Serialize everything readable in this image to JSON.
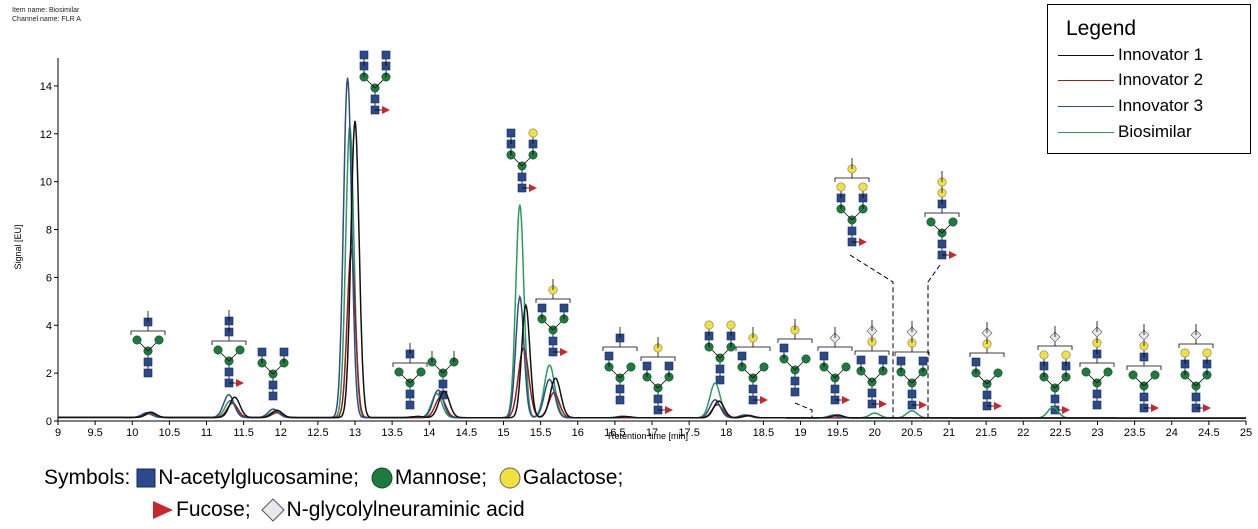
{
  "meta": {
    "item_name": "Item name: Biosimilar",
    "channel_name": "Channel name: FLR A"
  },
  "legend": {
    "title": "Legend",
    "entries": [
      {
        "label": "Innovator 1",
        "color": "#111111"
      },
      {
        "label": "Innovator 2",
        "color": "#9a1c1c"
      },
      {
        "label": "Innovator 3",
        "color": "#2d4f86"
      },
      {
        "label": "Biosimilar",
        "color": "#2e9a5c"
      }
    ]
  },
  "symbols": {
    "prefix": "Symbols:",
    "items": [
      {
        "shape": "square",
        "color": "#2b4a8c",
        "label": "N-acetylglucosamine;"
      },
      {
        "shape": "circle",
        "color": "#1e7a3e",
        "label": "Mannose;"
      },
      {
        "shape": "circle",
        "color": "#f2e13c",
        "label": "Galactose;"
      },
      {
        "shape": "triangle",
        "color": "#c8282d",
        "label": "Fucose;"
      },
      {
        "shape": "diamond",
        "color": "#e8e8ee",
        "label": "N-glycolylneuraminic acid"
      }
    ]
  },
  "chart_data": {
    "type": "line",
    "xlabel": "Retention time [min]",
    "ylabel": "Signal [EU]",
    "xlim": [
      9,
      25
    ],
    "ylim": [
      0,
      15
    ],
    "x_ticks": [
      9,
      9.5,
      10,
      10.5,
      11,
      11.5,
      12,
      12.5,
      13,
      13.5,
      14,
      14.5,
      15,
      15.5,
      16,
      16.5,
      17,
      17.5,
      18,
      18.5,
      19,
      19.5,
      20,
      20.5,
      21,
      21.5,
      22,
      22.5,
      23,
      23.5,
      24,
      24.5,
      25
    ],
    "x_tick_labels": [
      "9",
      "9.5",
      "10",
      "10.5",
      "11",
      "11.5",
      "12",
      "12.5",
      "13",
      "13.5",
      "14",
      "14.5",
      "15",
      "15.5",
      "16",
      "16.5",
      "17",
      "17.5",
      "18",
      "18.5",
      "19",
      "19.5",
      "20",
      "20.5",
      "21",
      "21.5",
      "22",
      "22.5",
      "23",
      "23.5",
      "24",
      "24.5",
      "25"
    ],
    "y_ticks": [
      0,
      2,
      4,
      6,
      8,
      10,
      12,
      14
    ],
    "y_tick_labels": [
      "0",
      "2",
      "4",
      "6",
      "8",
      "10",
      "12",
      "14"
    ],
    "baseline": 0.15,
    "series": [
      {
        "name": "Innovator 1",
        "color": "#111111",
        "peaks": [
          [
            10.25,
            0.22
          ],
          [
            11.38,
            0.85
          ],
          [
            11.95,
            0.3
          ],
          [
            13.0,
            12.4
          ],
          [
            13.85,
            0.05
          ],
          [
            14.2,
            1.1
          ],
          [
            15.3,
            4.7
          ],
          [
            15.7,
            1.65
          ],
          [
            16.65,
            0.05
          ],
          [
            17.9,
            0.7
          ],
          [
            18.3,
            0.1
          ],
          [
            19.5,
            0.12
          ]
        ]
      },
      {
        "name": "Innovator 2",
        "color": "#9a1c1c",
        "peaks": [
          [
            10.25,
            0.18
          ],
          [
            11.35,
            0.6
          ],
          [
            11.95,
            0.2
          ],
          [
            12.95,
            7.0
          ],
          [
            14.15,
            0.85
          ],
          [
            15.27,
            2.9
          ],
          [
            15.68,
            1.05
          ],
          [
            17.88,
            0.55
          ],
          [
            18.3,
            0.08
          ]
        ]
      },
      {
        "name": "Innovator 3",
        "color": "#2d4f86",
        "peaks": [
          [
            10.2,
            0.2
          ],
          [
            11.3,
            0.95
          ],
          [
            11.9,
            0.35
          ],
          [
            12.9,
            14.2
          ],
          [
            13.8,
            0.04
          ],
          [
            14.12,
            1.15
          ],
          [
            15.22,
            5.05
          ],
          [
            15.62,
            1.6
          ],
          [
            16.6,
            0.06
          ],
          [
            17.85,
            0.75
          ],
          [
            18.25,
            0.12
          ],
          [
            19.45,
            0.08
          ]
        ]
      },
      {
        "name": "Biosimilar",
        "color": "#2e9a5c",
        "peaks": [
          [
            10.2,
            0.16
          ],
          [
            11.32,
            0.7
          ],
          [
            11.92,
            0.25
          ],
          [
            12.93,
            12.2
          ],
          [
            14.1,
            1.0
          ],
          [
            15.22,
            8.9
          ],
          [
            15.62,
            2.2
          ],
          [
            16.6,
            0.05
          ],
          [
            17.85,
            1.45
          ],
          [
            18.28,
            0.08
          ],
          [
            19.45,
            0.12
          ],
          [
            20.0,
            0.2
          ],
          [
            20.5,
            0.3
          ],
          [
            22.4,
            0.45
          ]
        ]
      }
    ]
  }
}
